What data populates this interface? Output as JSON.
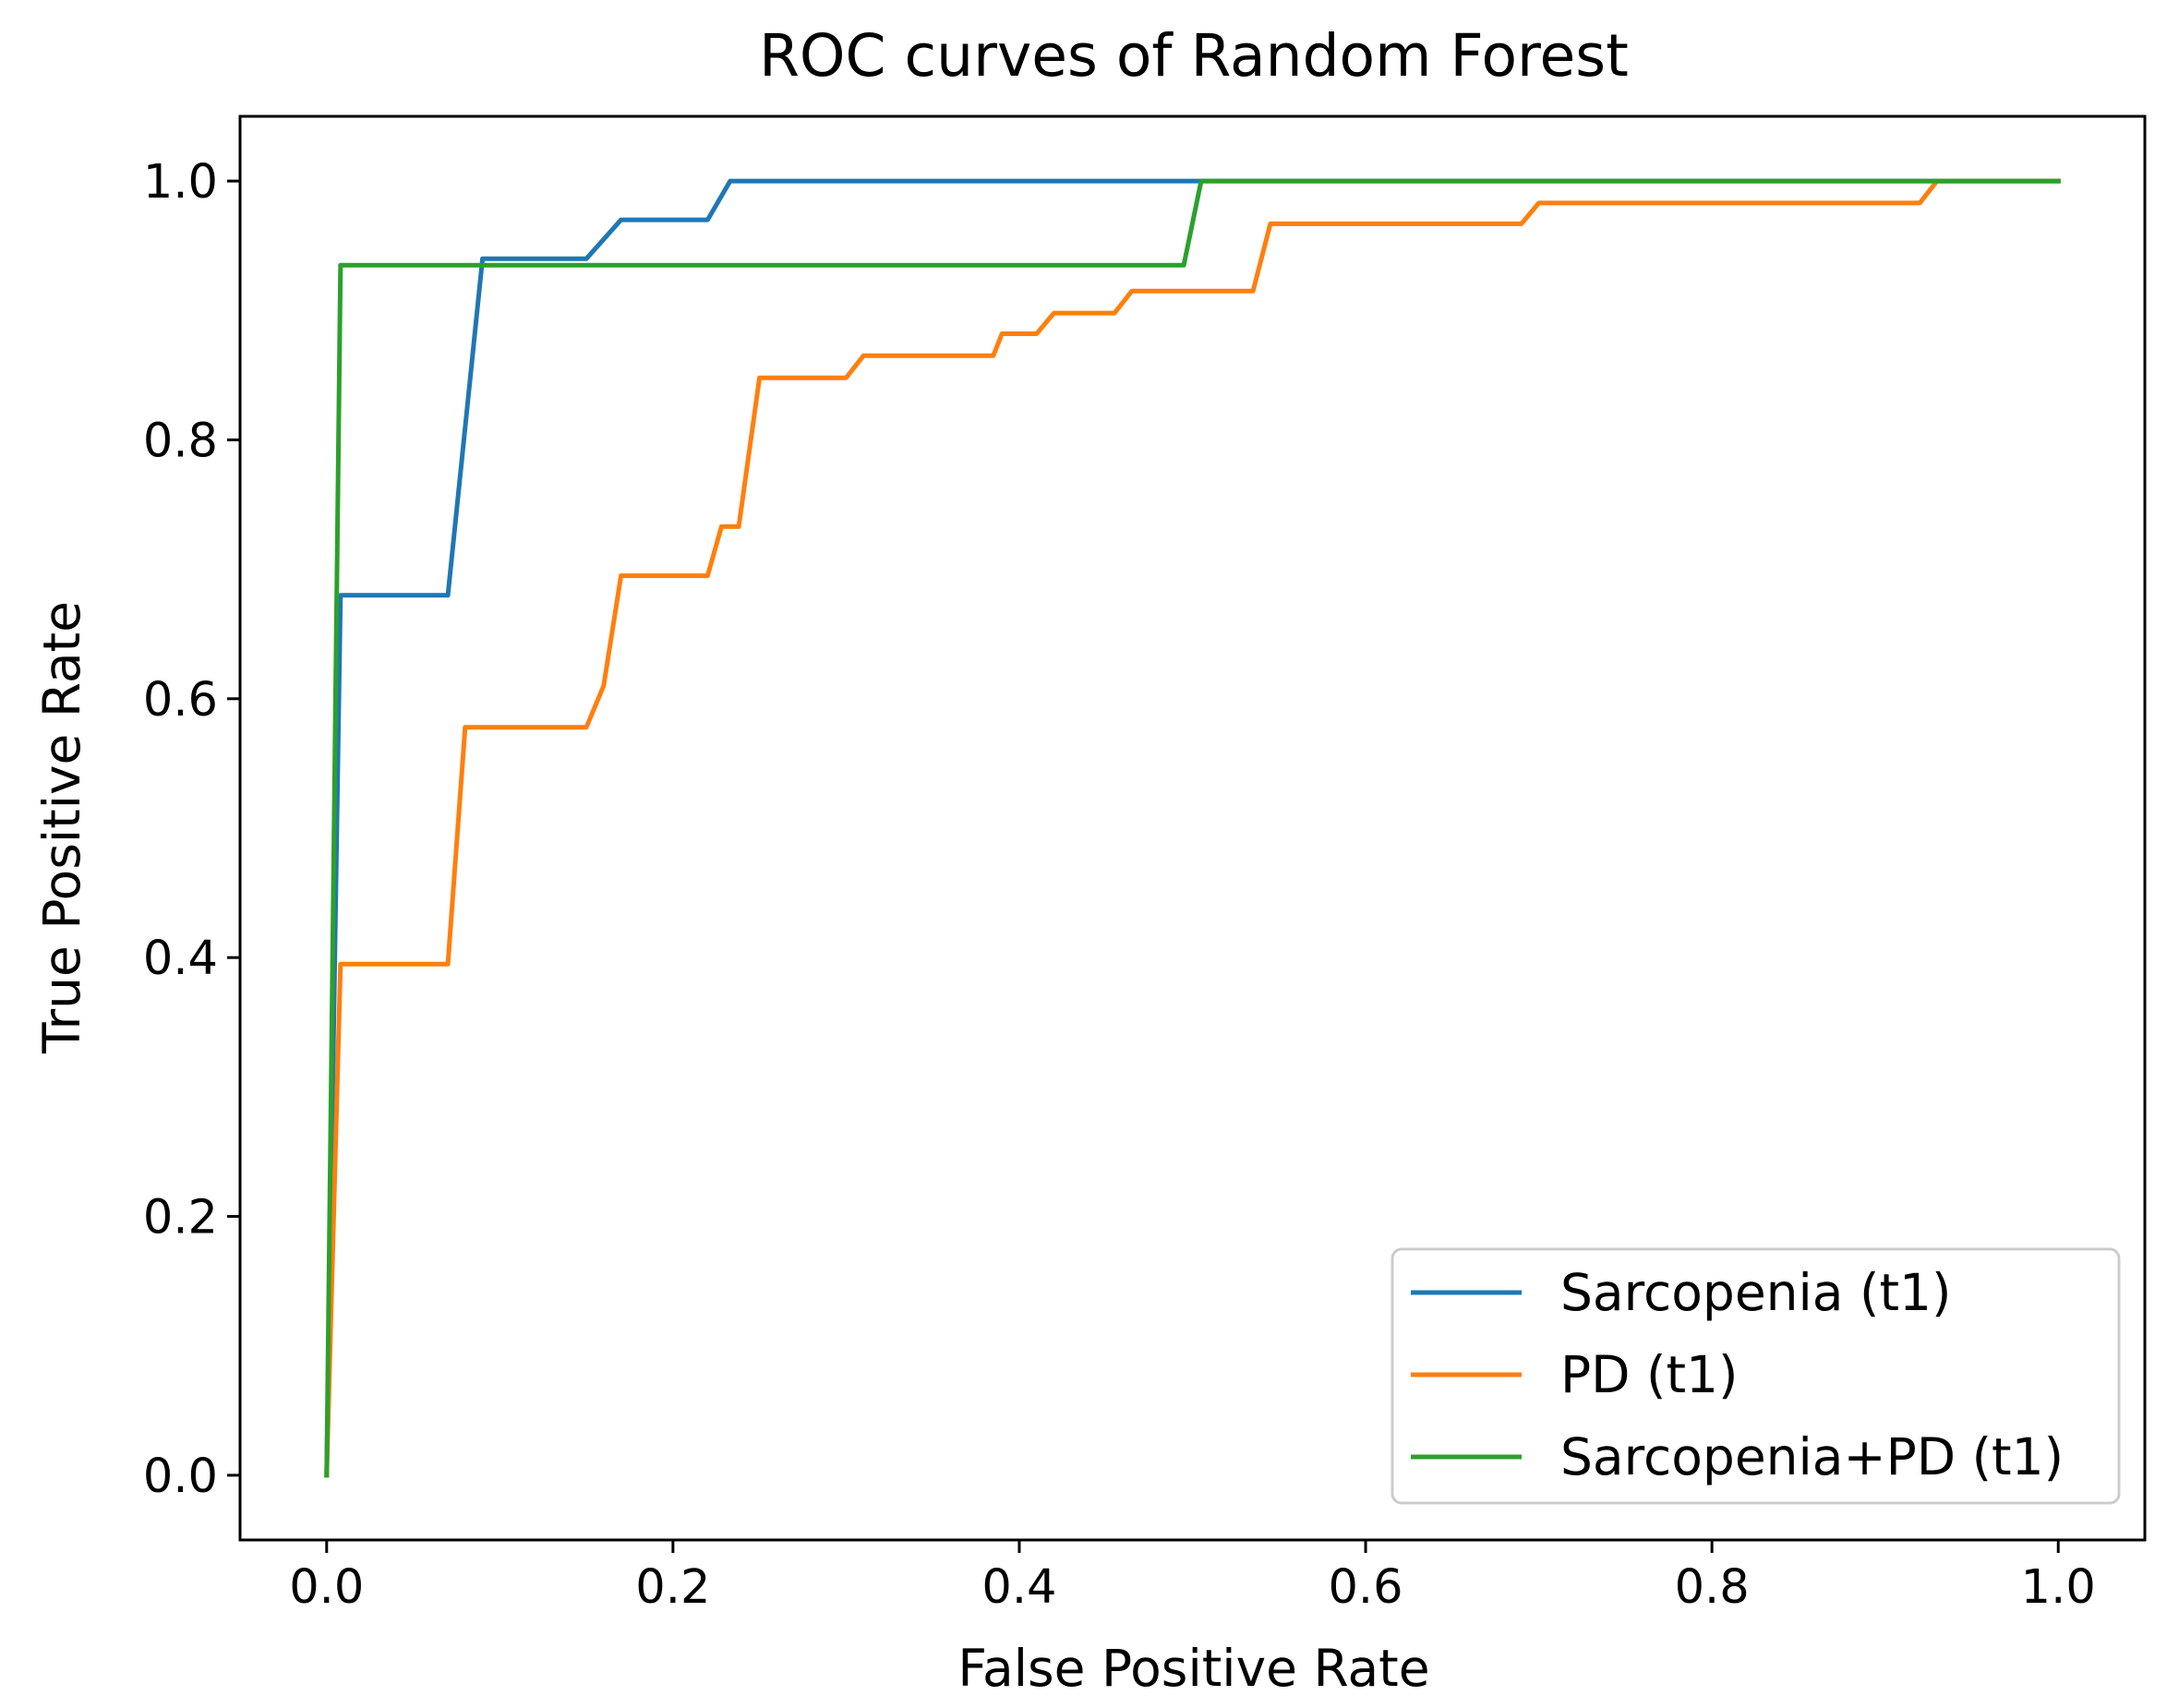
{
  "chart_data": {
    "type": "line",
    "title": "ROC curves of Random Forest",
    "xlabel": "False Positive Rate",
    "ylabel": "True Positive Rate",
    "xlim": [
      -0.05,
      1.05
    ],
    "ylim": [
      -0.05,
      1.05
    ],
    "xticks": [
      0.0,
      0.2,
      0.4,
      0.6,
      0.8,
      1.0
    ],
    "xtick_labels": [
      "0.0",
      "0.2",
      "0.4",
      "0.6",
      "0.8",
      "1.0"
    ],
    "yticks": [
      0.0,
      0.2,
      0.4,
      0.6,
      0.8,
      1.0
    ],
    "ytick_labels": [
      "0.0",
      "0.2",
      "0.4",
      "0.6",
      "0.8",
      "1.0"
    ],
    "grid": false,
    "legend_position": "bottom-right",
    "series": [
      {
        "name": "Sarcopenia (t1)",
        "color": "#1f77b4",
        "points": [
          [
            0.0,
            0.0
          ],
          [
            0.008,
            0.68
          ],
          [
            0.07,
            0.68
          ],
          [
            0.09,
            0.94
          ],
          [
            0.15,
            0.94
          ],
          [
            0.17,
            0.97
          ],
          [
            0.22,
            0.97
          ],
          [
            0.233,
            1.0
          ],
          [
            1.0,
            1.0
          ]
        ]
      },
      {
        "name": "PD (t1)",
        "color": "#ff7f0e",
        "points": [
          [
            0.0,
            0.0
          ],
          [
            0.008,
            0.395
          ],
          [
            0.07,
            0.395
          ],
          [
            0.08,
            0.578
          ],
          [
            0.15,
            0.578
          ],
          [
            0.16,
            0.61
          ],
          [
            0.17,
            0.695
          ],
          [
            0.22,
            0.695
          ],
          [
            0.228,
            0.733
          ],
          [
            0.238,
            0.733
          ],
          [
            0.25,
            0.848
          ],
          [
            0.3,
            0.848
          ],
          [
            0.31,
            0.865
          ],
          [
            0.385,
            0.865
          ],
          [
            0.39,
            0.882
          ],
          [
            0.41,
            0.882
          ],
          [
            0.42,
            0.898
          ],
          [
            0.455,
            0.898
          ],
          [
            0.465,
            0.915
          ],
          [
            0.535,
            0.915
          ],
          [
            0.545,
            0.967
          ],
          [
            0.69,
            0.967
          ],
          [
            0.7,
            0.983
          ],
          [
            0.92,
            0.983
          ],
          [
            0.93,
            1.0
          ],
          [
            1.0,
            1.0
          ]
        ]
      },
      {
        "name": "Sarcopenia+PD (t1)",
        "color": "#2ca02c",
        "points": [
          [
            0.0,
            0.0
          ],
          [
            0.008,
            0.935
          ],
          [
            0.495,
            0.935
          ],
          [
            0.505,
            1.0
          ],
          [
            1.0,
            1.0
          ]
        ]
      }
    ]
  }
}
